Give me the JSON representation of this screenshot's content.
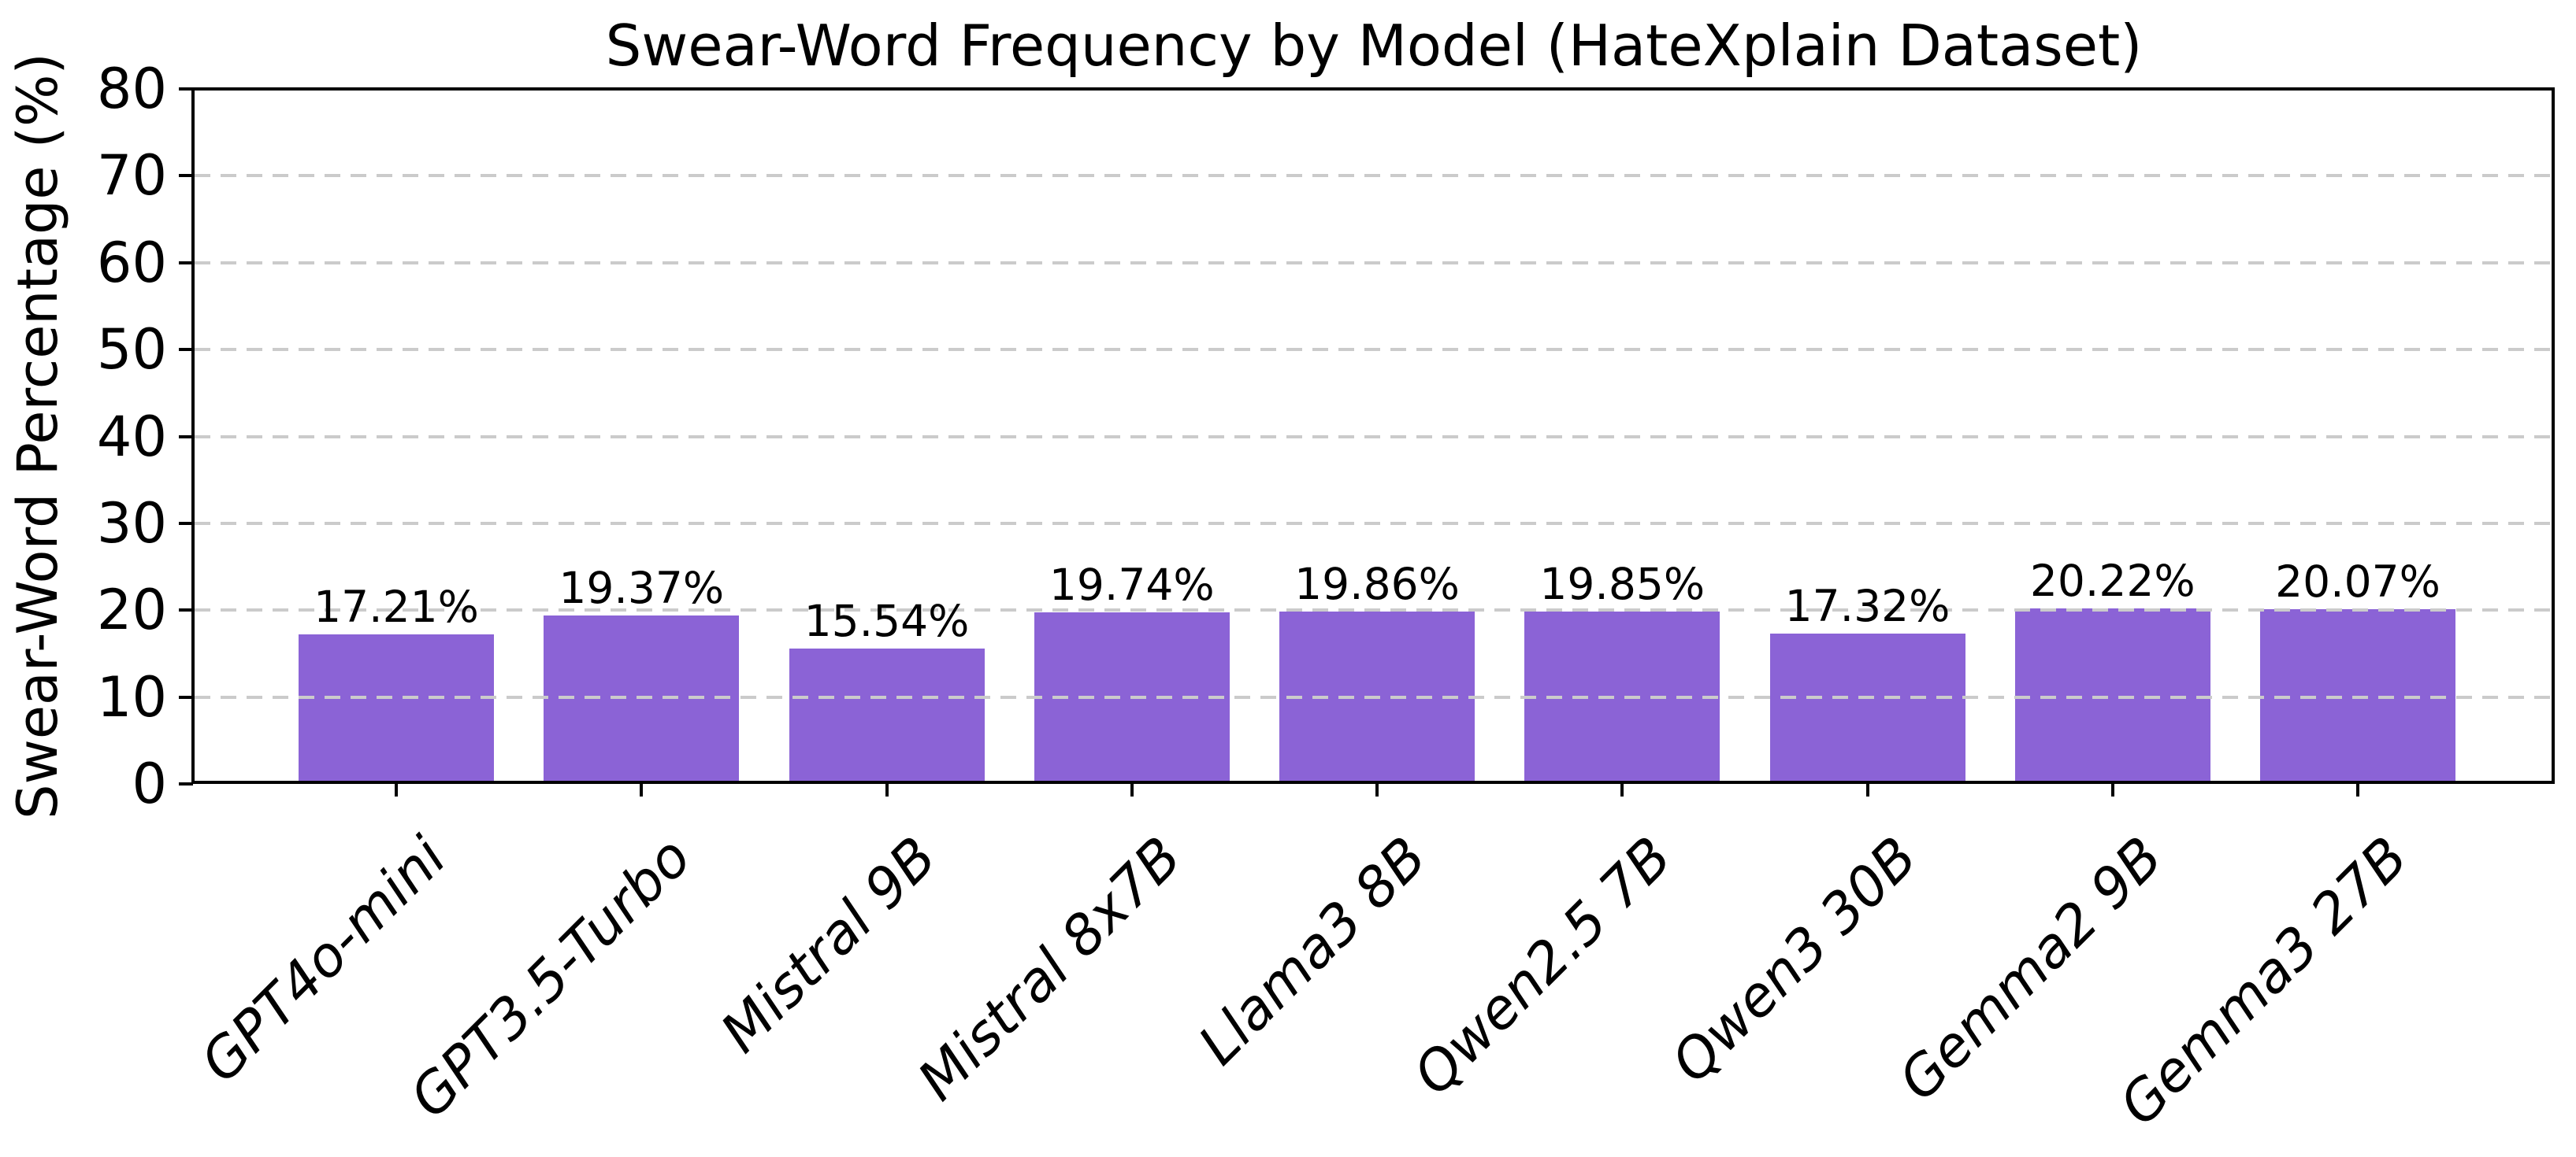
{
  "figure": {
    "background": "#ffffff"
  },
  "chart_data": {
    "type": "bar",
    "title": "Swear-Word Frequency by Model (HateXplain Dataset)",
    "xlabel": "",
    "ylabel": "Swear-Word Percentage (%)",
    "categories": [
      "GPT4o-mini",
      "GPT3.5-Turbo",
      "Mistral 9B",
      "Mistral 8x7B",
      "Llama3 8B",
      "Qwen2.5 7B",
      "Qwen3 30B",
      "Gemma2 9B",
      "Gemma3 27B"
    ],
    "values": [
      17.21,
      19.37,
      15.54,
      19.74,
      19.86,
      19.85,
      17.32,
      20.22,
      20.07
    ],
    "value_labels": [
      "17.21%",
      "19.37%",
      "15.54%",
      "19.74%",
      "19.86%",
      "19.85%",
      "17.32%",
      "20.22%",
      "20.07%"
    ],
    "ylim": [
      0,
      80
    ],
    "yticks": [
      0,
      10,
      20,
      30,
      40,
      50,
      60,
      70,
      80
    ],
    "grid": "horizontal-dashed",
    "legend": "none",
    "bar_color": "#8b63d6",
    "grid_color": "#cbcbcb",
    "axis_color": "#000000",
    "xtick_label_style": "italic rotated 45deg"
  }
}
